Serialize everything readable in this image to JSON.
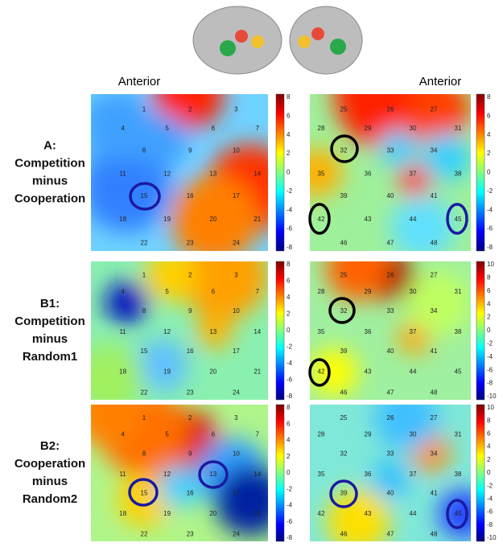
{
  "header": {
    "anterior_left": "Anterior",
    "anterior_right": "Anterior"
  },
  "rows": [
    {
      "label": [
        "A:",
        "Competition",
        "minus",
        "Cooperation"
      ],
      "left_colorbar": [
        8,
        6,
        4,
        2,
        0,
        -2,
        -4,
        -6,
        -8
      ],
      "right_colorbar": [
        8,
        6,
        4,
        2,
        0,
        -2,
        -4,
        -6,
        -8
      ]
    },
    {
      "label": [
        "B1:",
        "Competition",
        "minus",
        "Random1"
      ],
      "left_colorbar": [
        8,
        6,
        4,
        2,
        0,
        -2,
        -4,
        -6,
        -8
      ],
      "right_colorbar": [
        10,
        8,
        6,
        4,
        2,
        0,
        -2,
        -4,
        -6,
        -8,
        -10
      ]
    },
    {
      "label": [
        "B2:",
        "Cooperation",
        "minus",
        "Random2"
      ],
      "left_colorbar": [
        8,
        6,
        4,
        2,
        0,
        -2,
        -4,
        -6,
        -8
      ],
      "right_colorbar": [
        10,
        8,
        6,
        4,
        2,
        0,
        -2,
        -4,
        -6,
        -8,
        -10
      ]
    }
  ],
  "channels_left": [
    "1",
    "2",
    "3",
    "4",
    "5",
    "6",
    "7",
    "8",
    "9",
    "10",
    "11",
    "12",
    "13",
    "14",
    "15",
    "16",
    "17",
    "18",
    "19",
    "20",
    "21",
    "22",
    "23",
    "24"
  ],
  "channels_right": [
    "25",
    "26",
    "27",
    "28",
    "29",
    "30",
    "31",
    "32",
    "33",
    "34",
    "35",
    "36",
    "37",
    "38",
    "39",
    "40",
    "41",
    "42",
    "43",
    "44",
    "45",
    "46",
    "47",
    "48"
  ]
}
